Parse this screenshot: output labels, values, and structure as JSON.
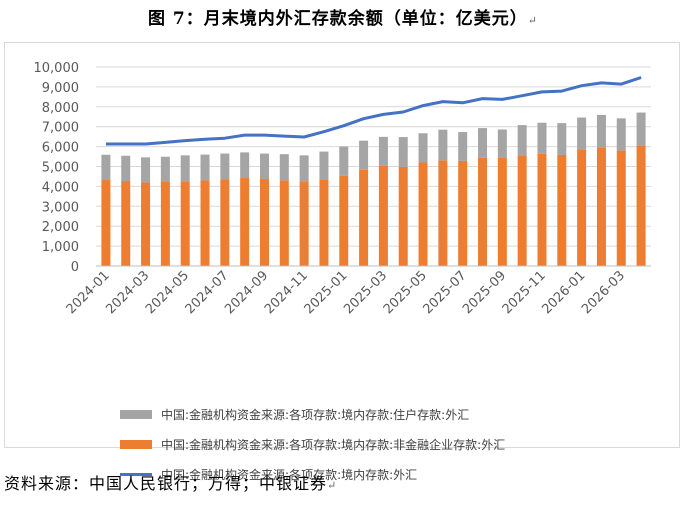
{
  "title": "图 7：月末境内外汇存款余额（单位：亿美元）",
  "footnote": "资料来源：中国人民银行；万得；中银证券",
  "colors": {
    "household": "#a5a5a5",
    "nonfinancial": "#ed7d31",
    "total": "#4472c4"
  },
  "chart_data": {
    "type": "bar",
    "stacked": true,
    "categories": [
      "2024-01",
      "2024-02",
      "2024-03",
      "2024-04",
      "2024-05",
      "2024-06",
      "2024-07",
      "2024-08",
      "2024-09",
      "2024-10",
      "2024-11",
      "2024-12",
      "2025-01",
      "2025-02",
      "2025-03",
      "2025-04",
      "2025-05",
      "2025-06",
      "2025-07",
      "2025-08",
      "2025-09",
      "2025-10",
      "2025-11",
      "2025-12",
      "2026-01",
      "2026-02",
      "2026-03",
      "2026-04"
    ],
    "xtick_labels": [
      "2024-01",
      "2024-03",
      "2024-05",
      "2024-07",
      "2024-09",
      "2024-11",
      "2025-01",
      "2025-03",
      "2025-05",
      "2025-07",
      "2025-09",
      "2025-11",
      "2026-01",
      "2026-03"
    ],
    "ylim": [
      0,
      10000
    ],
    "yticks": [
      "0",
      "1,000",
      "2,000",
      "3,000",
      "4,000",
      "5,000",
      "6,000",
      "7,000",
      "8,000",
      "9,000",
      "10,000"
    ],
    "grid": true,
    "legend_position": "bottom",
    "series": [
      {
        "name": "中国:金融机构资金来源:各项存款:境内存款:非金融企业存款:外汇",
        "kind": "bar",
        "values": [
          4320,
          4270,
          4200,
          4220,
          4260,
          4300,
          4350,
          4420,
          4370,
          4310,
          4260,
          4360,
          4540,
          4840,
          5030,
          4980,
          5200,
          5310,
          5280,
          5440,
          5430,
          5560,
          5640,
          5580,
          5830,
          5970,
          5810,
          6050
        ]
      },
      {
        "name": "中国:金融机构资金来源:各项存款:境内存款:住户存款:外汇",
        "kind": "bar",
        "values": [
          1270,
          1270,
          1260,
          1270,
          1300,
          1300,
          1300,
          1290,
          1280,
          1310,
          1300,
          1390,
          1460,
          1460,
          1460,
          1500,
          1470,
          1540,
          1450,
          1490,
          1430,
          1520,
          1560,
          1600,
          1630,
          1620,
          1610,
          1660
        ]
      },
      {
        "name": "中国:金融机构资金来源:各项存款:境内存款:外汇",
        "kind": "line",
        "values": [
          6130,
          6130,
          6130,
          6210,
          6300,
          6370,
          6420,
          6580,
          6580,
          6530,
          6480,
          6750,
          7050,
          7400,
          7620,
          7740,
          8060,
          8260,
          8200,
          8410,
          8370,
          8560,
          8750,
          8790,
          9060,
          9200,
          9140,
          9470
        ]
      }
    ]
  }
}
